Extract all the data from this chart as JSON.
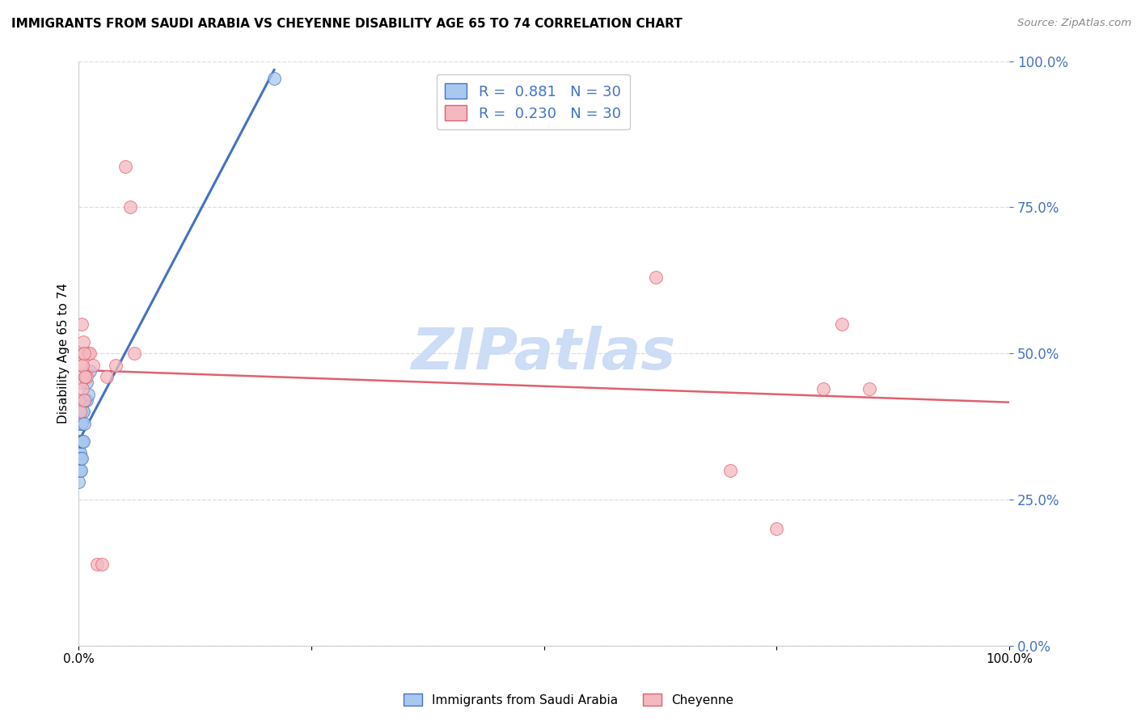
{
  "title": "IMMIGRANTS FROM SAUDI ARABIA VS CHEYENNE DISABILITY AGE 65 TO 74 CORRELATION CHART",
  "source": "Source: ZipAtlas.com",
  "ylabel": "Disability Age 65 to 74",
  "legend_label1": "Immigrants from Saudi Arabia",
  "legend_label2": "Cheyenne",
  "r1": 0.881,
  "n1": 30,
  "r2": 0.23,
  "n2": 30,
  "color_blue": "#a8c8f0",
  "color_pink": "#f4b8c0",
  "line_color_blue": "#4472c4",
  "line_color_pink": "#e06070",
  "tick_color": "#4472c4",
  "watermark_color": "#ccddf5",
  "blue_points_x": [
    0.0,
    0.0,
    0.0,
    0.0,
    0.0,
    0.0,
    0.001,
    0.001,
    0.001,
    0.001,
    0.001,
    0.002,
    0.002,
    0.002,
    0.002,
    0.003,
    0.003,
    0.003,
    0.004,
    0.004,
    0.005,
    0.005,
    0.006,
    0.006,
    0.007,
    0.008,
    0.008,
    0.01,
    0.012,
    0.21
  ],
  "blue_points_y": [
    0.28,
    0.3,
    0.3,
    0.32,
    0.33,
    0.35,
    0.3,
    0.32,
    0.33,
    0.35,
    0.38,
    0.3,
    0.32,
    0.35,
    0.38,
    0.32,
    0.35,
    0.38,
    0.35,
    0.4,
    0.35,
    0.4,
    0.38,
    0.42,
    0.42,
    0.42,
    0.45,
    0.43,
    0.47,
    0.97
  ],
  "pink_points_x": [
    0.0,
    0.001,
    0.002,
    0.003,
    0.004,
    0.005,
    0.006,
    0.007,
    0.008,
    0.01,
    0.012,
    0.015,
    0.02,
    0.025,
    0.03,
    0.04,
    0.05,
    0.055,
    0.06,
    0.62,
    0.7,
    0.75,
    0.8,
    0.82,
    0.85,
    0.003,
    0.004,
    0.005,
    0.006,
    0.007
  ],
  "pink_points_y": [
    0.42,
    0.4,
    0.45,
    0.48,
    0.44,
    0.5,
    0.42,
    0.46,
    0.46,
    0.5,
    0.5,
    0.48,
    0.14,
    0.14,
    0.46,
    0.48,
    0.82,
    0.75,
    0.5,
    0.63,
    0.3,
    0.2,
    0.44,
    0.55,
    0.44,
    0.55,
    0.48,
    0.52,
    0.5,
    0.46
  ],
  "xlim": [
    0.0,
    1.0
  ],
  "ylim": [
    0.0,
    1.0
  ],
  "y_ticks": [
    0.0,
    0.25,
    0.5,
    0.75,
    1.0
  ],
  "x_ticks": [
    0.0,
    0.25,
    0.5,
    0.75,
    1.0
  ],
  "background_color": "#ffffff",
  "grid_color": "#dddddd"
}
